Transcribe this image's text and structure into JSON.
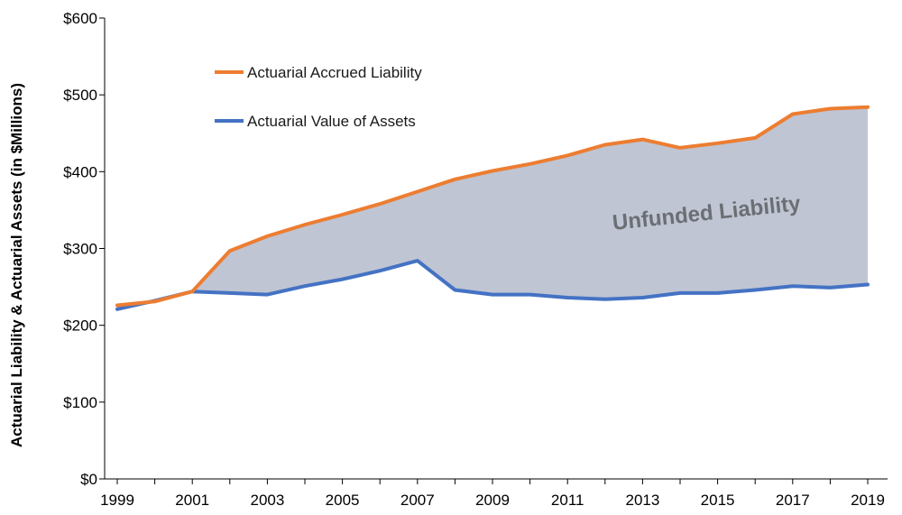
{
  "chart_data": {
    "type": "area",
    "x": [
      1999,
      2000,
      2001,
      2002,
      2003,
      2004,
      2005,
      2006,
      2007,
      2008,
      2009,
      2010,
      2011,
      2012,
      2013,
      2014,
      2015,
      2016,
      2017,
      2018,
      2019
    ],
    "series": [
      {
        "name": "Actuarial Accrued Liability",
        "color": "#ED7D31",
        "values": [
          226,
          231,
          244,
          297,
          316,
          331,
          344,
          358,
          374,
          390,
          401,
          410,
          421,
          435,
          442,
          431,
          437,
          444,
          475,
          482,
          484
        ]
      },
      {
        "name": "Actuarial Value of Assets",
        "color": "#4472C4",
        "values": [
          221,
          232,
          244,
          242,
          240,
          251,
          260,
          271,
          284,
          246,
          240,
          240,
          236,
          234,
          236,
          242,
          242,
          246,
          251,
          249,
          253
        ]
      }
    ],
    "fill_between": {
      "label": "Unfunded Liability",
      "color": "#BFC5D3"
    },
    "ylabel": "Actuarial Liability & Actuarial Assets (in $Millions)",
    "xlabel": "",
    "ylim": [
      0,
      600
    ],
    "xlim": [
      1999,
      2019
    ],
    "y_ticks": [
      "$0",
      "$100",
      "$200",
      "$300",
      "$400",
      "$500",
      "$600"
    ],
    "x_ticks": [
      "1999",
      "2001",
      "2003",
      "2005",
      "2007",
      "2009",
      "2011",
      "2013",
      "2015",
      "2017",
      "2019"
    ],
    "grid": false,
    "legend_position": "top-left"
  }
}
